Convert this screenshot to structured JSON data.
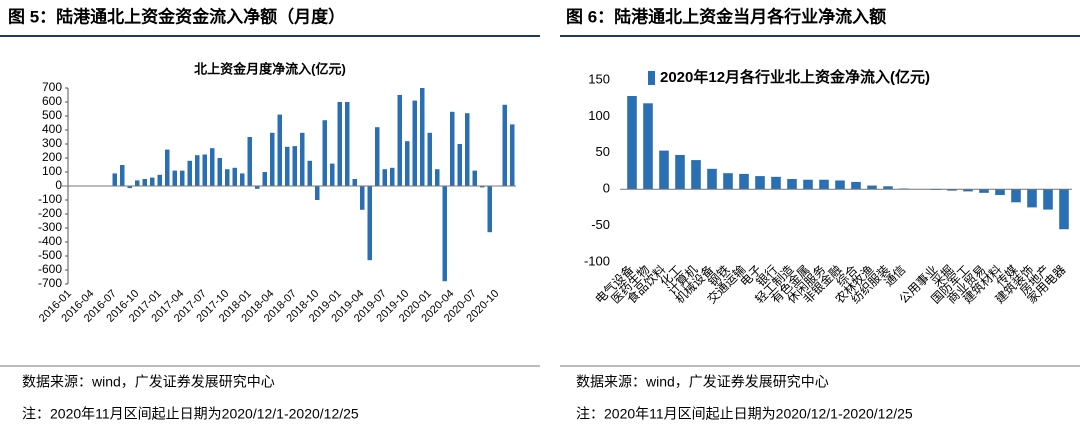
{
  "figures": [
    {
      "caption": "图 5：陆港通北上资金资金流入净额（月度）",
      "source": "数据来源：wind，广发证券发展研究中心",
      "note": "注：2020年11月区间起止日期为2020/12/1-2020/12/25"
    },
    {
      "caption": "图 6：陆港通北上资金当月各行业净流入额",
      "source": "数据来源：wind，广发证券发展研究中心",
      "note": "注：2020年11月区间起止日期为2020/12/1-2020/12/25"
    }
  ],
  "chart_data": [
    {
      "type": "bar",
      "title": "北上资金月度净流入(亿元)",
      "color": "#2b6fb3",
      "categories": [
        "2016-01",
        null,
        null,
        "2016-04",
        null,
        null,
        "2016-07",
        null,
        null,
        "2016-10",
        null,
        null,
        "2017-01",
        null,
        null,
        "2017-04",
        null,
        null,
        "2017-07",
        null,
        null,
        "2017-10",
        null,
        null,
        "2018-01",
        null,
        null,
        "2018-04",
        null,
        null,
        "2018-07",
        null,
        null,
        "2018-10",
        null,
        null,
        "2019-01",
        null,
        null,
        "2019-04",
        null,
        null,
        "2019-07",
        null,
        null,
        "2019-10",
        null,
        null,
        "2020-01",
        null,
        null,
        "2020-04",
        null,
        null,
        "2020-07",
        null,
        null,
        "2020-10",
        null,
        null
      ],
      "values": [
        0,
        0,
        0,
        0,
        0,
        0,
        90,
        150,
        -15,
        40,
        50,
        60,
        80,
        260,
        110,
        110,
        180,
        220,
        225,
        270,
        200,
        120,
        130,
        90,
        350,
        -20,
        100,
        380,
        510,
        280,
        285,
        380,
        180,
        -100,
        470,
        160,
        600,
        600,
        50,
        -170,
        -530,
        420,
        120,
        130,
        650,
        320,
        610,
        700,
        380,
        120,
        -680,
        530,
        300,
        520,
        110,
        -10,
        -330,
        0,
        580,
        440
      ],
      "ylim": [
        -700,
        700
      ],
      "yticks": [
        -700,
        -600,
        -500,
        -400,
        -300,
        -200,
        -100,
        0,
        100,
        200,
        300,
        400,
        500,
        600,
        700
      ]
    },
    {
      "type": "bar",
      "categories": [
        "电气设备",
        "医药生物",
        "食品饮料",
        "化工",
        "计算机",
        "机械设备",
        "钢铁",
        "交通运输",
        "电子",
        "银行",
        "轻工制造",
        "有色金属",
        "休闲服务",
        "非银金融",
        "综合",
        "农林牧渔",
        "纺织服装",
        "通信",
        null,
        "公用事业",
        "采掘",
        "国防军工",
        "商业贸易",
        "建筑材料",
        "传媒",
        "建筑装饰",
        "房地产",
        "家用电器"
      ],
      "series": [
        {
          "name": "2020年12月各行业北上资金净流入(亿元)",
          "color": "#2b6fb3",
          "values": [
            128,
            118,
            53,
            47,
            40,
            28,
            22,
            21,
            18,
            17,
            14,
            13,
            13,
            12,
            10,
            5,
            4,
            1,
            0,
            -1,
            -2,
            -3,
            -5,
            -8,
            -18,
            -25,
            -28,
            -55
          ]
        }
      ],
      "ylim": [
        -100,
        150
      ],
      "yticks": [
        -100,
        -50,
        0,
        50,
        100,
        150
      ],
      "legend": "top-left"
    }
  ]
}
